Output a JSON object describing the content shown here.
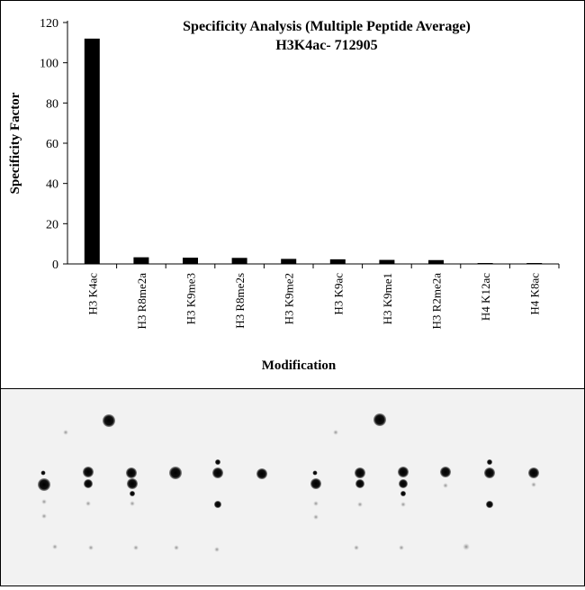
{
  "chart_data": {
    "type": "bar",
    "title": "Specificity Analysis  (Multiple Peptide Average)",
    "subtitle": "H3K4ac- 712905",
    "xlabel": "Modification",
    "ylabel": "Specificity Factor",
    "ylim": [
      0,
      120
    ],
    "yticks": [
      0,
      20,
      40,
      60,
      80,
      100,
      120
    ],
    "grid": false,
    "categories": [
      "H3 K4ac",
      "H3 R8me2a",
      "H3 K9me3",
      "H3 R8me2s",
      "H3 K9me2",
      "H3 K9ac",
      "H3 K9me1",
      "H3 R2me2a",
      "H4 K12ac",
      "H4 K8ac"
    ],
    "values": [
      112,
      3.3,
      3.1,
      3.0,
      2.5,
      2.3,
      2.0,
      1.9,
      0.3,
      0.2
    ],
    "bar_color": "#000000"
  },
  "blot": {
    "background": "#f2f2f2",
    "spot_color": "#000000"
  }
}
